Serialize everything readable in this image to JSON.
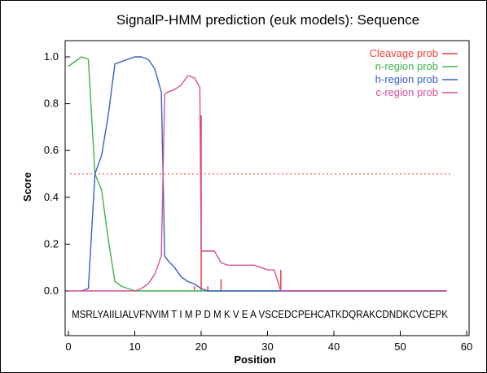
{
  "chart_data": {
    "type": "line",
    "title": "SignalP-HMM prediction (euk models): Sequence",
    "xlabel": "Position",
    "ylabel": "Score",
    "xlim": [
      0,
      60
    ],
    "ylim": [
      0,
      1.05
    ],
    "x_ticks": [
      "0",
      "10",
      "20",
      "30",
      "40",
      "50",
      "60"
    ],
    "y_ticks": [
      "0.0",
      "0.2",
      "0.4",
      "0.6",
      "0.8",
      "1.0"
    ],
    "threshold": 0.5,
    "sequence": "MSRLYAIILIALVFNVIM T I M P D M K V E A VSCEDCPEHCATKDQRAKCDNDKCVCEPK",
    "legend_position": "top-right",
    "colors": {
      "cleavage": "#e8413c",
      "n_region": "#3fb24a",
      "h_region": "#3a5fc8",
      "c_region": "#d44f9a",
      "threshold": "#e8413c"
    },
    "cleavage": {
      "name": "Cleavage prob",
      "bars": [
        [
          19,
          0.02
        ],
        [
          20,
          0.75
        ],
        [
          21,
          0.02
        ],
        [
          23,
          0.05
        ],
        [
          32,
          0.09
        ]
      ]
    },
    "series": [
      {
        "name": "n-region prob",
        "key": "n_region",
        "points": [
          [
            0,
            0.96
          ],
          [
            2,
            1.0
          ],
          [
            3,
            0.99
          ],
          [
            4,
            0.5
          ],
          [
            5,
            0.43
          ],
          [
            6,
            0.22
          ],
          [
            7,
            0.04
          ],
          [
            8,
            0.02
          ],
          [
            9,
            0.01
          ],
          [
            10,
            0.0
          ],
          [
            15,
            0.0
          ],
          [
            20,
            0.0
          ],
          [
            30,
            0.0
          ],
          [
            40,
            0.0
          ],
          [
            50,
            0.0
          ],
          [
            57,
            0.0
          ]
        ]
      },
      {
        "name": "h-region prob",
        "key": "h_region",
        "points": [
          [
            2,
            0.0
          ],
          [
            3,
            0.01
          ],
          [
            4,
            0.5
          ],
          [
            5,
            0.58
          ],
          [
            6,
            0.75
          ],
          [
            7,
            0.97
          ],
          [
            8,
            0.98
          ],
          [
            9,
            0.99
          ],
          [
            10,
            1.0
          ],
          [
            11,
            1.0
          ],
          [
            12,
            0.99
          ],
          [
            13,
            0.95
          ],
          [
            14,
            0.85
          ],
          [
            14.5,
            0.15
          ],
          [
            15,
            0.13
          ],
          [
            16,
            0.1
          ],
          [
            17,
            0.06
          ],
          [
            18,
            0.04
          ],
          [
            19,
            0.03
          ],
          [
            20,
            0.01
          ],
          [
            21,
            0.0
          ],
          [
            30,
            0.0
          ],
          [
            40,
            0.0
          ],
          [
            50,
            0.0
          ],
          [
            57,
            0.0
          ]
        ]
      },
      {
        "name": "c-region prob",
        "key": "c_region",
        "points": [
          [
            0,
            0.0
          ],
          [
            9,
            0.0
          ],
          [
            10,
            0.0
          ],
          [
            11,
            0.01
          ],
          [
            12,
            0.03
          ],
          [
            13,
            0.07
          ],
          [
            14,
            0.15
          ],
          [
            14.5,
            0.84
          ],
          [
            15,
            0.85
          ],
          [
            16,
            0.86
          ],
          [
            17,
            0.88
          ],
          [
            18,
            0.92
          ],
          [
            19,
            0.91
          ],
          [
            19.8,
            0.87
          ],
          [
            20,
            0.17
          ],
          [
            21,
            0.17
          ],
          [
            22,
            0.17
          ],
          [
            23,
            0.12
          ],
          [
            24,
            0.11
          ],
          [
            25,
            0.11
          ],
          [
            26,
            0.11
          ],
          [
            27,
            0.11
          ],
          [
            28,
            0.11
          ],
          [
            29,
            0.1
          ],
          [
            30,
            0.09
          ],
          [
            31,
            0.09
          ],
          [
            32,
            0.0
          ],
          [
            40,
            0.0
          ],
          [
            50,
            0.0
          ],
          [
            57,
            0.0
          ]
        ]
      }
    ]
  }
}
